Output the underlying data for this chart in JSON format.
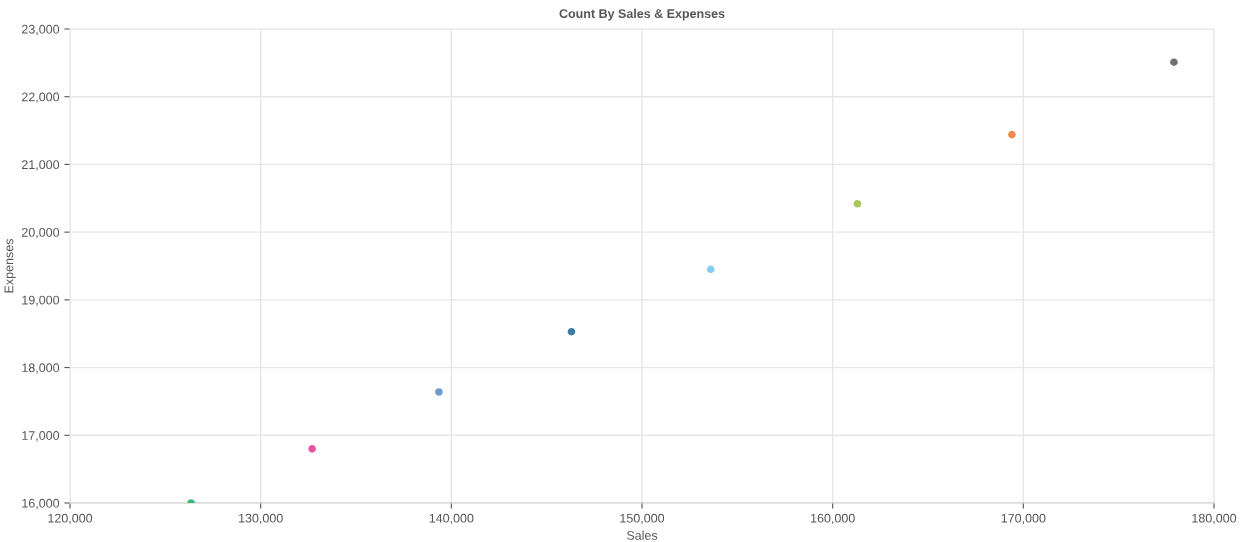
{
  "chart_data": {
    "type": "scatter",
    "title": "Count By Sales & Expenses",
    "xlabel": "Sales",
    "ylabel": "Expenses",
    "x": [
      126350,
      132700,
      139350,
      146300,
      153600,
      161300,
      169400,
      177900
    ],
    "values": [
      16000,
      16800,
      17640,
      18530,
      19450,
      20420,
      21440,
      22510
    ],
    "colors": [
      "#3cb878",
      "#e8559f",
      "#6f9bd1",
      "#3f7aa6",
      "#86ccee",
      "#a8c85a",
      "#ef8a4a",
      "#707070"
    ],
    "xlim": [
      120000,
      180000
    ],
    "xticks": [
      {
        "value": 120000,
        "label": "120,000"
      },
      {
        "value": 130000,
        "label": "130,000"
      },
      {
        "value": 140000,
        "label": "140,000"
      },
      {
        "value": 150000,
        "label": "150,000"
      },
      {
        "value": 160000,
        "label": "160,000"
      },
      {
        "value": 170000,
        "label": "170,000"
      },
      {
        "value": 180000,
        "label": "180,000"
      }
    ],
    "ylim": [
      16000,
      23000
    ],
    "yticks": [
      {
        "value": 16000,
        "label": "16,000"
      },
      {
        "value": 17000,
        "label": "17,000"
      },
      {
        "value": 18000,
        "label": "18,000"
      },
      {
        "value": 19000,
        "label": "19,000"
      },
      {
        "value": 20000,
        "label": "20,000"
      },
      {
        "value": 21000,
        "label": "21,000"
      },
      {
        "value": 22000,
        "label": "22,000"
      },
      {
        "value": 23000,
        "label": "23,000"
      }
    ],
    "grid": true,
    "marker": "circle"
  }
}
